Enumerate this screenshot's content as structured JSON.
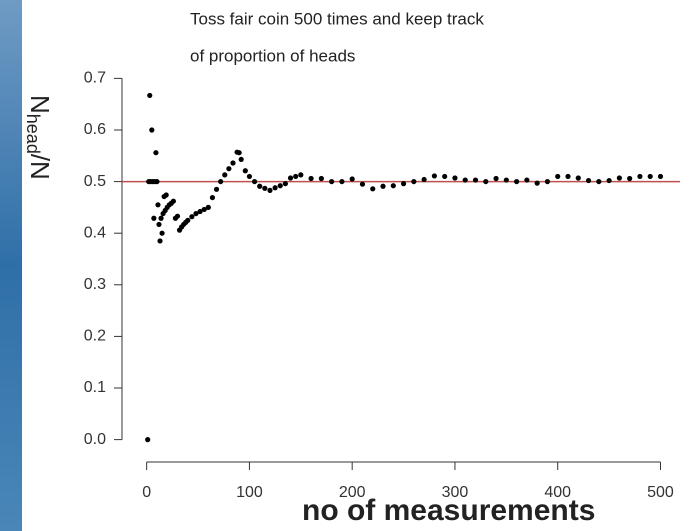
{
  "chart_data": {
    "type": "scatter",
    "title": [
      "Toss fair coin 500 times and keep track",
      "of proportion of heads"
    ],
    "ylabel": [
      "N",
      "head",
      "/N"
    ],
    "xlabel": "no of measurements",
    "color": "#000000",
    "hline": 0.5,
    "hline_color": "#c0504d",
    "xlim": [
      -24,
      519
    ],
    "xticks": [
      0,
      100,
      200,
      300,
      400,
      500
    ],
    "ylim": [
      -0.024,
      0.724
    ],
    "yticks": [
      {
        "value": 0,
        "label": "0.0"
      },
      0.1,
      0.2,
      0.3,
      0.4,
      0.5,
      0.6,
      0.7
    ],
    "x": [
      1,
      2,
      3,
      4,
      5,
      6,
      7,
      8,
      9,
      10,
      11,
      12,
      13,
      14,
      15,
      16,
      17,
      18,
      19,
      20,
      22,
      24,
      26,
      28,
      30,
      32,
      34,
      36,
      38,
      40,
      44,
      48,
      52,
      56,
      60,
      64,
      68,
      72,
      76,
      80,
      84,
      88,
      90,
      92,
      96,
      100,
      105,
      110,
      115,
      120,
      125,
      130,
      135,
      140,
      145,
      150,
      160,
      170,
      180,
      190,
      200,
      210,
      220,
      230,
      240,
      250,
      260,
      270,
      280,
      290,
      300,
      310,
      320,
      330,
      340,
      350,
      360,
      370,
      380,
      390,
      400,
      410,
      420,
      430,
      440,
      450,
      460,
      470,
      480,
      490,
      500
    ],
    "values": [
      0,
      0.5,
      0.667,
      0.5,
      0.6,
      0.5,
      0.429,
      0.5,
      0.556,
      0.5,
      0.455,
      0.417,
      0.385,
      0.429,
      0.4,
      0.438,
      0.471,
      0.444,
      0.474,
      0.45,
      0.455,
      0.458,
      0.462,
      0.429,
      0.433,
      0.406,
      0.412,
      0.417,
      0.421,
      0.425,
      0.432,
      0.438,
      0.442,
      0.446,
      0.45,
      0.469,
      0.485,
      0.5,
      0.513,
      0.525,
      0.536,
      0.557,
      0.556,
      0.543,
      0.521,
      0.51,
      0.5,
      0.491,
      0.487,
      0.483,
      0.488,
      0.492,
      0.496,
      0.507,
      0.51,
      0.513,
      0.506,
      0.506,
      0.5,
      0.5,
      0.505,
      0.495,
      0.486,
      0.491,
      0.492,
      0.496,
      0.5,
      0.504,
      0.511,
      0.51,
      0.507,
      0.503,
      0.503,
      0.5,
      0.506,
      0.503,
      0.5,
      0.503,
      0.497,
      0.5,
      0.51,
      0.51,
      0.507,
      0.502,
      0.5,
      0.502,
      0.507,
      0.506,
      0.51,
      0.51,
      0.51
    ]
  }
}
